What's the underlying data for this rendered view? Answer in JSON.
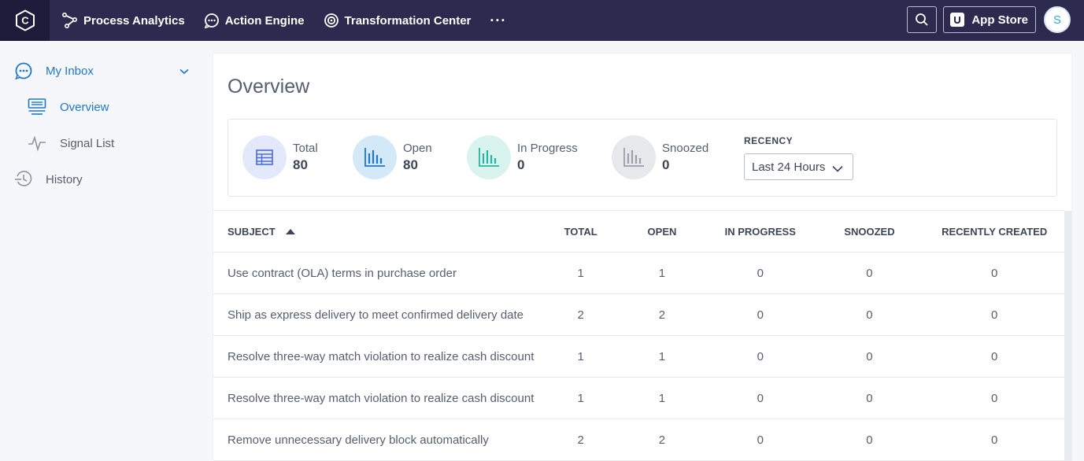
{
  "topbar": {
    "logo_letter": "C",
    "nav": [
      {
        "label": "Process Analytics",
        "icon": "process-analytics-icon"
      },
      {
        "label": "Action Engine",
        "icon": "action-engine-icon"
      },
      {
        "label": "Transformation Center",
        "icon": "transformation-center-icon"
      }
    ],
    "more_label": "···",
    "app_store_label": "App Store",
    "avatar_initial": "S"
  },
  "sidebar": {
    "inbox_label": "My Inbox",
    "overview_label": "Overview",
    "signal_list_label": "Signal List",
    "history_label": "History"
  },
  "main": {
    "title": "Overview",
    "stats": {
      "total": {
        "label": "Total",
        "value": "80",
        "color": "#e3e8fb"
      },
      "open": {
        "label": "Open",
        "value": "80",
        "color": "#d4e9f8"
      },
      "in_progress": {
        "label": "In Progress",
        "value": "0",
        "color": "#d9f3ef"
      },
      "snoozed": {
        "label": "Snoozed",
        "value": "0",
        "color": "#e6e8ec"
      }
    },
    "recency": {
      "label": "RECENCY",
      "value": "Last 24 Hours"
    },
    "table": {
      "headers": {
        "subject": "SUBJECT",
        "total": "TOTAL",
        "open": "OPEN",
        "in_progress": "IN PROGRESS",
        "snoozed": "SNOOZED",
        "recently_created": "RECENTLY CREATED"
      },
      "rows": [
        {
          "subject": "Use contract (OLA) terms in purchase order",
          "total": "1",
          "open": "1",
          "in_progress": "0",
          "snoozed": "0",
          "recently_created": "0"
        },
        {
          "subject": "Ship as express delivery to meet confirmed delivery date",
          "total": "2",
          "open": "2",
          "in_progress": "0",
          "snoozed": "0",
          "recently_created": "0"
        },
        {
          "subject": "Resolve three-way match violation to realize cash discount",
          "total": "1",
          "open": "1",
          "in_progress": "0",
          "snoozed": "0",
          "recently_created": "0"
        },
        {
          "subject": "Resolve three-way match violation to realize cash discount",
          "total": "1",
          "open": "1",
          "in_progress": "0",
          "snoozed": "0",
          "recently_created": "0"
        },
        {
          "subject": "Remove unnecessary delivery block automatically",
          "total": "2",
          "open": "2",
          "in_progress": "0",
          "snoozed": "0",
          "recently_created": "0"
        }
      ]
    }
  }
}
